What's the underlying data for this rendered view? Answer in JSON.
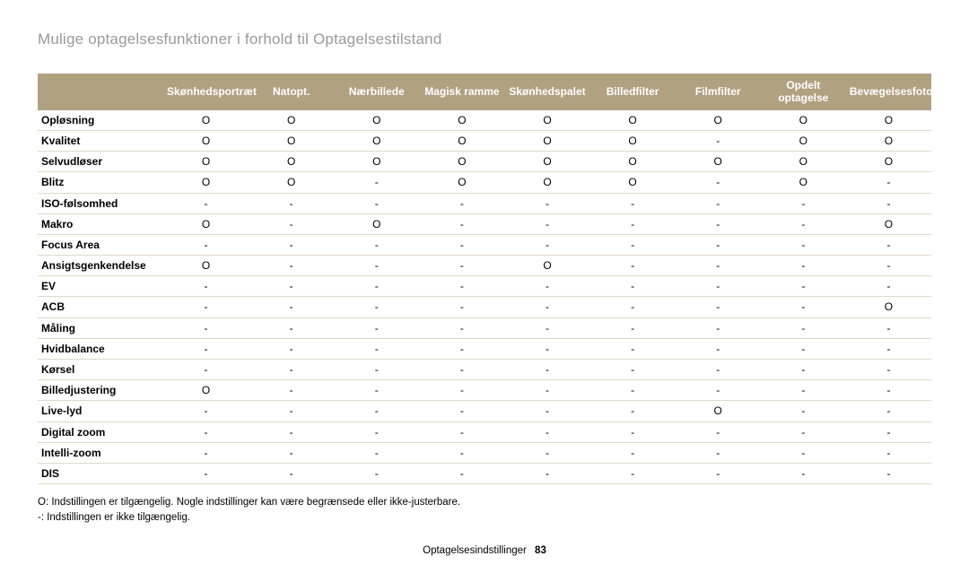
{
  "title": "Mulige optagelsesfunktioner i forhold til Optagelsestilstand",
  "table": {
    "columns": [
      "Skønhedsportræt",
      "Natopt.",
      "Nærbillede",
      "Magisk ramme",
      "Skønhedspalet",
      "Billedfilter",
      "Filmfilter",
      "Opdelt optagelse",
      "Bevægelsesfoto"
    ],
    "rows": [
      {
        "label": "Opløsning",
        "cells": [
          "O",
          "O",
          "O",
          "O",
          "O",
          "O",
          "O",
          "O",
          "O"
        ]
      },
      {
        "label": "Kvalitet",
        "cells": [
          "O",
          "O",
          "O",
          "O",
          "O",
          "O",
          "-",
          "O",
          "O"
        ]
      },
      {
        "label": "Selvudløser",
        "cells": [
          "O",
          "O",
          "O",
          "O",
          "O",
          "O",
          "O",
          "O",
          "O"
        ]
      },
      {
        "label": "Blitz",
        "cells": [
          "O",
          "O",
          "-",
          "O",
          "O",
          "O",
          "-",
          "O",
          "-"
        ]
      },
      {
        "label": "ISO-følsomhed",
        "cells": [
          "-",
          "-",
          "-",
          "-",
          "-",
          "-",
          "-",
          "-",
          "-"
        ]
      },
      {
        "label": "Makro",
        "cells": [
          "O",
          "-",
          "O",
          "-",
          "-",
          "-",
          "-",
          "-",
          "O"
        ]
      },
      {
        "label": "Focus Area",
        "cells": [
          "-",
          "-",
          "-",
          "-",
          "-",
          "-",
          "-",
          "-",
          "-"
        ]
      },
      {
        "label": "Ansigtsgenkendelse",
        "cells": [
          "O",
          "-",
          "-",
          "-",
          "O",
          "-",
          "-",
          "-",
          "-"
        ]
      },
      {
        "label": "EV",
        "cells": [
          "-",
          "-",
          "-",
          "-",
          "-",
          "-",
          "-",
          "-",
          "-"
        ]
      },
      {
        "label": "ACB",
        "cells": [
          "-",
          "-",
          "-",
          "-",
          "-",
          "-",
          "-",
          "-",
          "O"
        ]
      },
      {
        "label": "Måling",
        "cells": [
          "-",
          "-",
          "-",
          "-",
          "-",
          "-",
          "-",
          "-",
          "-"
        ]
      },
      {
        "label": "Hvidbalance",
        "cells": [
          "-",
          "-",
          "-",
          "-",
          "-",
          "-",
          "-",
          "-",
          "-"
        ]
      },
      {
        "label": "Kørsel",
        "cells": [
          "-",
          "-",
          "-",
          "-",
          "-",
          "-",
          "-",
          "-",
          "-"
        ]
      },
      {
        "label": "Billedjustering",
        "cells": [
          "O",
          "-",
          "-",
          "-",
          "-",
          "-",
          "-",
          "-",
          "-"
        ]
      },
      {
        "label": "Live-lyd",
        "cells": [
          "-",
          "-",
          "-",
          "-",
          "-",
          "-",
          "O",
          "-",
          "-"
        ]
      },
      {
        "label": "Digital zoom",
        "cells": [
          "-",
          "-",
          "-",
          "-",
          "-",
          "-",
          "-",
          "-",
          "-"
        ]
      },
      {
        "label": "Intelli-zoom",
        "cells": [
          "-",
          "-",
          "-",
          "-",
          "-",
          "-",
          "-",
          "-",
          "-"
        ]
      },
      {
        "label": "DIS",
        "cells": [
          "-",
          "-",
          "-",
          "-",
          "-",
          "-",
          "-",
          "-",
          "-"
        ]
      }
    ]
  },
  "notes": {
    "line1": "O: Indstillingen er tilgængelig. Nogle indstillinger kan være begrænsede eller ikke-justerbare.",
    "line2": "-: Indstillingen er ikke tilgængelig."
  },
  "footer": {
    "section": "Optagelsesindstillinger",
    "page": "83"
  }
}
